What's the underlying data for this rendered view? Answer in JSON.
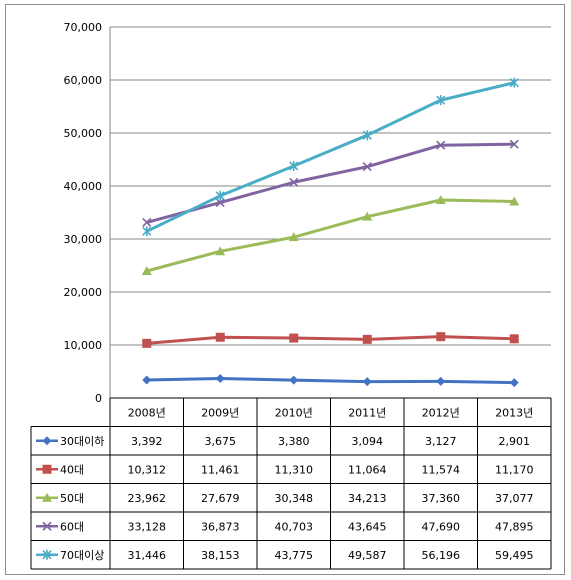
{
  "chart_data": {
    "type": "line",
    "categories": [
      "2008년",
      "2009년",
      "2010년",
      "2011년",
      "2012년",
      "2013년"
    ],
    "ylim": [
      0,
      70000
    ],
    "yticks": [
      "0",
      "10,000",
      "20,000",
      "30,000",
      "40,000",
      "50,000",
      "60,000",
      "70,000"
    ],
    "grid": true,
    "legend": "data-table-left",
    "series": [
      {
        "name": "30대이하",
        "marker": "diamond",
        "color": "#4472C4",
        "values": [
          3392,
          3675,
          3380,
          3094,
          3127,
          2901
        ],
        "labels": [
          "3,392",
          "3,675",
          "3,380",
          "3,094",
          "3,127",
          "2,901"
        ]
      },
      {
        "name": "40대",
        "marker": "square",
        "color": "#C0504D",
        "values": [
          10312,
          11461,
          11310,
          11064,
          11574,
          11170
        ],
        "labels": [
          "10,312",
          "11,461",
          "11,310",
          "11,064",
          "11,574",
          "11,170"
        ]
      },
      {
        "name": "50대",
        "marker": "triangle",
        "color": "#9BBB59",
        "values": [
          23962,
          27679,
          30348,
          34213,
          37360,
          37077
        ],
        "labels": [
          "23,962",
          "27,679",
          "30,348",
          "34,213",
          "37,360",
          "37,077"
        ]
      },
      {
        "name": "60대",
        "marker": "x",
        "color": "#8064A2",
        "values": [
          33128,
          36873,
          40703,
          43645,
          47690,
          47895
        ],
        "labels": [
          "33,128",
          "36,873",
          "40,703",
          "43,645",
          "47,690",
          "47,895"
        ]
      },
      {
        "name": "70대이상",
        "marker": "star",
        "color": "#4BACC6",
        "values": [
          31446,
          38153,
          43775,
          49587,
          56196,
          59495
        ],
        "labels": [
          "31,446",
          "38,153",
          "43,775",
          "49,587",
          "56,196",
          "59,495"
        ]
      }
    ]
  }
}
